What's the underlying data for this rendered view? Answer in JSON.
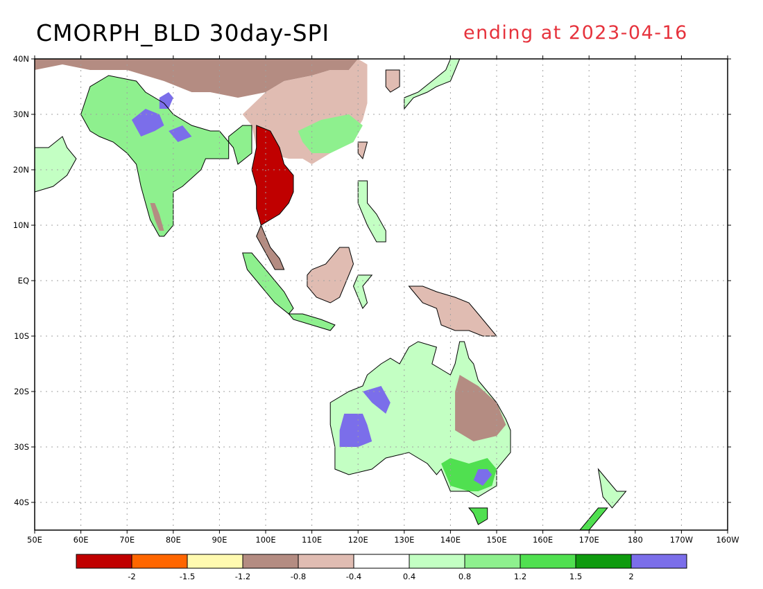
{
  "title": "CMORPH_BLD 30day-SPI",
  "subtitle": "ending at 2023-04-16",
  "colors": {
    "title": "#000000",
    "subtitle": "#e6323c",
    "land_outline": "#000000",
    "grid": "#a0a0a0"
  },
  "map": {
    "lon_range": [
      50,
      200
    ],
    "lat_range": [
      -45,
      40
    ],
    "lon_ticks": [
      {
        "lon": 50,
        "label": "50E"
      },
      {
        "lon": 60,
        "label": "60E"
      },
      {
        "lon": 70,
        "label": "70E"
      },
      {
        "lon": 80,
        "label": "80E"
      },
      {
        "lon": 90,
        "label": "90E"
      },
      {
        "lon": 100,
        "label": "100E"
      },
      {
        "lon": 110,
        "label": "110E"
      },
      {
        "lon": 120,
        "label": "120E"
      },
      {
        "lon": 130,
        "label": "130E"
      },
      {
        "lon": 140,
        "label": "140E"
      },
      {
        "lon": 150,
        "label": "150E"
      },
      {
        "lon": 160,
        "label": "160E"
      },
      {
        "lon": 170,
        "label": "170E"
      },
      {
        "lon": 180,
        "label": "180"
      },
      {
        "lon": 190,
        "label": "170W"
      },
      {
        "lon": 200,
        "label": "160W"
      }
    ],
    "lat_ticks": [
      {
        "lat": 40,
        "label": "40N"
      },
      {
        "lat": 30,
        "label": "30N"
      },
      {
        "lat": 20,
        "label": "20N"
      },
      {
        "lat": 10,
        "label": "10N"
      },
      {
        "lat": 0,
        "label": "EQ"
      },
      {
        "lat": -10,
        "label": "10S"
      },
      {
        "lat": -20,
        "label": "20S"
      },
      {
        "lat": -30,
        "label": "30S"
      },
      {
        "lat": -40,
        "label": "40S"
      }
    ]
  },
  "legend": {
    "colors": [
      "#c00000",
      "#ff6600",
      "#fffab0",
      "#b48c82",
      "#e0bcb2",
      "#ffffff",
      "#c3ffc3",
      "#8ef08e",
      "#50e050",
      "#0f9b0f",
      "#7b6eea"
    ],
    "labels": [
      "-2",
      "-1.5",
      "-1.2",
      "-0.8",
      "-0.4",
      "0.4",
      "0.8",
      "1.2",
      "1.5",
      "2"
    ]
  },
  "regions": [
    {
      "name": "south-asia",
      "color": "#8ef08e",
      "points": [
        [
          67,
          25
        ],
        [
          70,
          23
        ],
        [
          72,
          21
        ],
        [
          73,
          17
        ],
        [
          74,
          14
        ],
        [
          75,
          11
        ],
        [
          77,
          8
        ],
        [
          78,
          8
        ],
        [
          80,
          10
        ],
        [
          80,
          13
        ],
        [
          80,
          16
        ],
        [
          82,
          17
        ],
        [
          86,
          20
        ],
        [
          87,
          22
        ],
        [
          90,
          22
        ],
        [
          92,
          22
        ],
        [
          92,
          26
        ],
        [
          95,
          28
        ],
        [
          97,
          28
        ],
        [
          97,
          23
        ],
        [
          94,
          21
        ],
        [
          93,
          24
        ],
        [
          90,
          27
        ],
        [
          88,
          27
        ],
        [
          84,
          28
        ],
        [
          80,
          30
        ],
        [
          78,
          32
        ],
        [
          74,
          34
        ],
        [
          72,
          36
        ],
        [
          66,
          37
        ],
        [
          62,
          35
        ],
        [
          60,
          30
        ],
        [
          62,
          27
        ],
        [
          64,
          26
        ]
      ]
    },
    {
      "name": "arabia-coast",
      "color": "#c3ffc3",
      "points": [
        [
          50,
          24
        ],
        [
          53,
          24
        ],
        [
          56,
          26
        ],
        [
          57,
          24
        ],
        [
          59,
          22
        ],
        [
          57,
          19
        ],
        [
          54,
          17
        ],
        [
          50,
          16
        ]
      ]
    },
    {
      "name": "central-asia-brown",
      "color": "#b48c82",
      "points": [
        [
          50,
          38
        ],
        [
          56,
          39
        ],
        [
          62,
          38
        ],
        [
          70,
          38
        ],
        [
          78,
          36
        ],
        [
          84,
          34
        ],
        [
          88,
          34
        ],
        [
          94,
          33
        ],
        [
          100,
          34
        ],
        [
          104,
          36
        ],
        [
          110,
          37
        ],
        [
          114,
          38
        ],
        [
          118,
          38
        ],
        [
          120,
          40
        ],
        [
          50,
          40
        ]
      ]
    },
    {
      "name": "china-mixed",
      "color": "#e0bcb2",
      "points": [
        [
          100,
          34
        ],
        [
          104,
          36
        ],
        [
          110,
          37
        ],
        [
          114,
          38
        ],
        [
          118,
          38
        ],
        [
          120,
          40
        ],
        [
          122,
          39
        ],
        [
          122,
          32
        ],
        [
          121,
          29
        ],
        [
          118,
          25
        ],
        [
          114,
          23
        ],
        [
          110,
          21
        ],
        [
          108,
          22
        ],
        [
          105,
          22
        ],
        [
          100,
          23
        ],
        [
          98,
          24
        ],
        [
          97,
          28
        ],
        [
          95,
          30
        ]
      ]
    },
    {
      "name": "se-china-green",
      "color": "#8ef08e",
      "points": [
        [
          107,
          27
        ],
        [
          112,
          29
        ],
        [
          118,
          30
        ],
        [
          121,
          28
        ],
        [
          119,
          25
        ],
        [
          114,
          23
        ],
        [
          110,
          23
        ],
        [
          108,
          25
        ]
      ]
    },
    {
      "name": "indochina-drought",
      "color": "#c00000",
      "points": [
        [
          98,
          28
        ],
        [
          101,
          27
        ],
        [
          103,
          24
        ],
        [
          104,
          21
        ],
        [
          106,
          19
        ],
        [
          106,
          16
        ],
        [
          105,
          14
        ],
        [
          103,
          12
        ],
        [
          101,
          11
        ],
        [
          99,
          10
        ],
        [
          98,
          13
        ],
        [
          98,
          17
        ],
        [
          97,
          20
        ],
        [
          98,
          24
        ]
      ]
    },
    {
      "name": "peninsula-brown",
      "color": "#b48c82",
      "points": [
        [
          99,
          10
        ],
        [
          100,
          8
        ],
        [
          101,
          6
        ],
        [
          103,
          4
        ],
        [
          104,
          2
        ],
        [
          102,
          2
        ],
        [
          100,
          5
        ],
        [
          98,
          8
        ]
      ]
    },
    {
      "name": "sumatra",
      "color": "#8ef08e",
      "points": [
        [
          95,
          5
        ],
        [
          97,
          5
        ],
        [
          100,
          2
        ],
        [
          104,
          -2
        ],
        [
          106,
          -5
        ],
        [
          105,
          -6
        ],
        [
          102,
          -4
        ],
        [
          99,
          -1
        ],
        [
          96,
          2
        ]
      ]
    },
    {
      "name": "borneo",
      "color": "#e0bcb2",
      "points": [
        [
          109,
          1
        ],
        [
          110,
          2
        ],
        [
          113,
          3
        ],
        [
          116,
          6
        ],
        [
          118,
          6
        ],
        [
          119,
          3
        ],
        [
          118,
          1
        ],
        [
          116,
          -3
        ],
        [
          114,
          -4
        ],
        [
          111,
          -3
        ],
        [
          109,
          -1
        ]
      ]
    },
    {
      "name": "sulawesi",
      "color": "#c3ffc3",
      "points": [
        [
          119,
          -1
        ],
        [
          120,
          1
        ],
        [
          123,
          1
        ],
        [
          121,
          -1
        ],
        [
          122,
          -4
        ],
        [
          121,
          -5
        ],
        [
          120,
          -3
        ]
      ]
    },
    {
      "name": "java",
      "color": "#8ef08e",
      "points": [
        [
          105,
          -6
        ],
        [
          108,
          -6
        ],
        [
          112,
          -7
        ],
        [
          115,
          -8
        ],
        [
          114,
          -9
        ],
        [
          110,
          -8
        ],
        [
          106,
          -7
        ]
      ]
    },
    {
      "name": "philippines",
      "color": "#c3ffc3",
      "points": [
        [
          120,
          18
        ],
        [
          122,
          18
        ],
        [
          122,
          14
        ],
        [
          124,
          12
        ],
        [
          126,
          9
        ],
        [
          126,
          7
        ],
        [
          124,
          7
        ],
        [
          122,
          10
        ],
        [
          120,
          14
        ]
      ]
    },
    {
      "name": "new-guinea",
      "color": "#e0bcb2",
      "points": [
        [
          131,
          -1
        ],
        [
          134,
          -1
        ],
        [
          137,
          -2
        ],
        [
          141,
          -3
        ],
        [
          144,
          -4
        ],
        [
          146,
          -6
        ],
        [
          148,
          -8
        ],
        [
          150,
          -10
        ],
        [
          147,
          -10
        ],
        [
          144,
          -9
        ],
        [
          141,
          -9
        ],
        [
          138,
          -8
        ],
        [
          137,
          -5
        ],
        [
          134,
          -4
        ],
        [
          132,
          -2
        ]
      ]
    },
    {
      "name": "australia",
      "color": "#c3ffc3",
      "points": [
        [
          114,
          -22
        ],
        [
          114,
          -26
        ],
        [
          115,
          -30
        ],
        [
          115,
          -34
        ],
        [
          118,
          -35
        ],
        [
          123,
          -34
        ],
        [
          126,
          -32
        ],
        [
          131,
          -31
        ],
        [
          135,
          -33
        ],
        [
          137,
          -35
        ],
        [
          138,
          -34
        ],
        [
          140,
          -38
        ],
        [
          144,
          -38
        ],
        [
          146,
          -39
        ],
        [
          150,
          -37
        ],
        [
          150,
          -34
        ],
        [
          153,
          -31
        ],
        [
          153,
          -27
        ],
        [
          152,
          -25
        ],
        [
          150,
          -22
        ],
        [
          148,
          -20
        ],
        [
          146,
          -18
        ],
        [
          145,
          -15
        ],
        [
          144,
          -14
        ],
        [
          143,
          -11
        ],
        [
          142,
          -11
        ],
        [
          141,
          -15
        ],
        [
          140,
          -17
        ],
        [
          138,
          -16
        ],
        [
          136,
          -15
        ],
        [
          137,
          -12
        ],
        [
          133,
          -11
        ],
        [
          131,
          -12
        ],
        [
          129,
          -15
        ],
        [
          127,
          -14
        ],
        [
          125,
          -15
        ],
        [
          122,
          -17
        ],
        [
          121,
          -19
        ],
        [
          118,
          -20
        ]
      ]
    },
    {
      "name": "australia-east-brown",
      "color": "#b48c82",
      "points": [
        [
          141,
          -20
        ],
        [
          141,
          -27
        ],
        [
          145,
          -29
        ],
        [
          150,
          -28
        ],
        [
          152,
          -26
        ],
        [
          150,
          -22
        ],
        [
          146,
          -19
        ],
        [
          142,
          -17
        ]
      ]
    },
    {
      "name": "australia-south-green",
      "color": "#50e050",
      "points": [
        [
          138,
          -33
        ],
        [
          140,
          -37
        ],
        [
          144,
          -38
        ],
        [
          146,
          -38
        ],
        [
          149,
          -37
        ],
        [
          150,
          -34
        ],
        [
          148,
          -32
        ],
        [
          144,
          -33
        ],
        [
          140,
          -32
        ]
      ]
    },
    {
      "name": "nw-australia-blue",
      "color": "#7b6eea",
      "points": [
        [
          117,
          -24
        ],
        [
          116,
          -27
        ],
        [
          116,
          -30
        ],
        [
          120,
          -30
        ],
        [
          123,
          -29
        ],
        [
          122,
          -26
        ],
        [
          121,
          -24
        ]
      ]
    },
    {
      "name": "west-australia-blue",
      "color": "#7b6eea",
      "points": [
        [
          121,
          -20
        ],
        [
          123,
          -22
        ],
        [
          126,
          -24
        ],
        [
          127,
          -22
        ],
        [
          125,
          -19
        ]
      ]
    },
    {
      "name": "se-australia-blue",
      "color": "#7b6eea",
      "points": [
        [
          145,
          -36
        ],
        [
          147,
          -37
        ],
        [
          149,
          -35
        ],
        [
          148,
          -34
        ],
        [
          146,
          -34
        ]
      ]
    },
    {
      "name": "india-blue-1",
      "color": "#7b6eea",
      "points": [
        [
          71,
          29
        ],
        [
          74,
          31
        ],
        [
          77,
          30
        ],
        [
          78,
          28
        ],
        [
          76,
          27
        ],
        [
          73,
          26
        ]
      ]
    },
    {
      "name": "india-blue-2",
      "color": "#7b6eea",
      "points": [
        [
          77,
          33
        ],
        [
          79,
          34
        ],
        [
          80,
          33
        ],
        [
          79,
          31
        ],
        [
          77,
          31
        ]
      ]
    },
    {
      "name": "india-blue-3",
      "color": "#7b6eea",
      "points": [
        [
          79,
          27
        ],
        [
          82,
          28
        ],
        [
          84,
          26
        ],
        [
          81,
          25
        ]
      ]
    },
    {
      "name": "india-south-brown",
      "color": "#b48c82",
      "points": [
        [
          75,
          14
        ],
        [
          76,
          11
        ],
        [
          77,
          9
        ],
        [
          78,
          9
        ],
        [
          77,
          12
        ],
        [
          76,
          14
        ]
      ]
    },
    {
      "name": "tasmania",
      "color": "#50e050",
      "points": [
        [
          144,
          -41
        ],
        [
          148,
          -41
        ],
        [
          148,
          -43
        ],
        [
          146,
          -44
        ],
        [
          145,
          -42
        ]
      ]
    },
    {
      "name": "new-zealand-north",
      "color": "#c3ffc3",
      "points": [
        [
          172,
          -34
        ],
        [
          174,
          -36
        ],
        [
          176,
          -38
        ],
        [
          178,
          -38
        ],
        [
          176,
          -40
        ],
        [
          175,
          -41
        ],
        [
          173,
          -39
        ]
      ]
    },
    {
      "name": "new-zealand-south",
      "color": "#50e050",
      "points": [
        [
          172,
          -41
        ],
        [
          174,
          -41
        ],
        [
          172,
          -43
        ],
        [
          170,
          -45
        ],
        [
          167,
          -46
        ],
        [
          168,
          -45
        ]
      ]
    },
    {
      "name": "japan",
      "color": "#c3ffc3",
      "points": [
        [
          130,
          31
        ],
        [
          132,
          33
        ],
        [
          135,
          34
        ],
        [
          137,
          35
        ],
        [
          140,
          36
        ],
        [
          141,
          38
        ],
        [
          142,
          40
        ],
        [
          140,
          40
        ],
        [
          139,
          38
        ],
        [
          136,
          36
        ],
        [
          133,
          34
        ],
        [
          130,
          33
        ]
      ]
    },
    {
      "name": "korea",
      "color": "#e0bcb2",
      "points": [
        [
          126,
          38
        ],
        [
          129,
          38
        ],
        [
          129,
          35
        ],
        [
          127,
          34
        ],
        [
          126,
          35
        ]
      ]
    },
    {
      "name": "taiwan",
      "color": "#e0bcb2",
      "points": [
        [
          120,
          25
        ],
        [
          122,
          25
        ],
        [
          121,
          22
        ],
        [
          120,
          23
        ]
      ]
    }
  ]
}
